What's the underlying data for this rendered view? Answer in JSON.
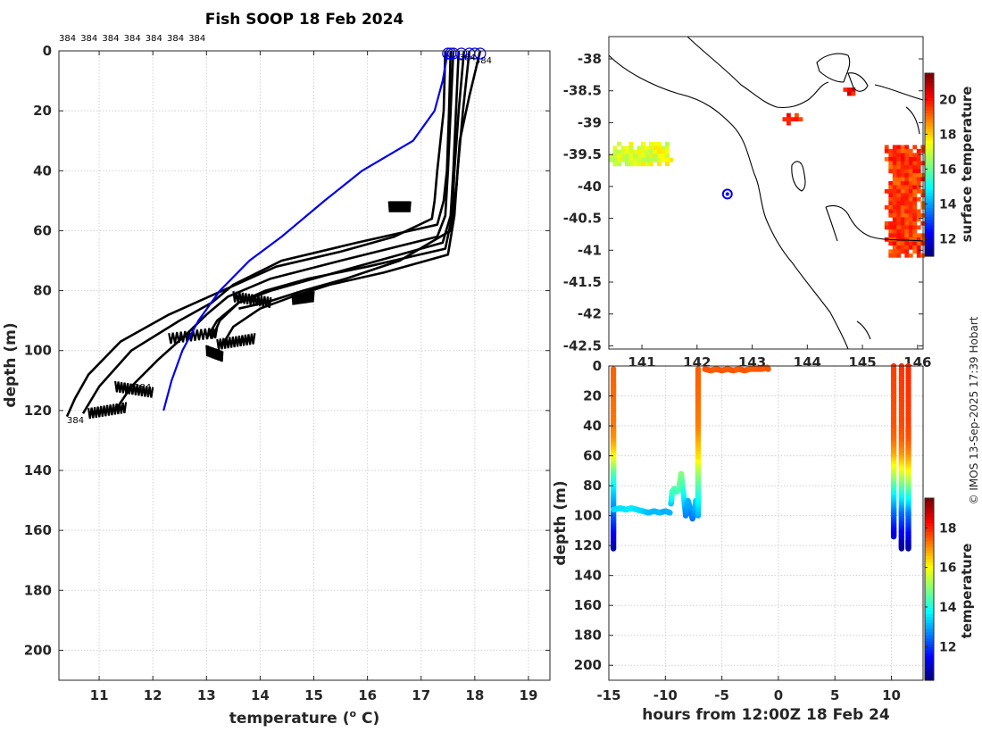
{
  "title": "Fish SOOP 18 Feb 2024",
  "credit": "© IMOS 13-Sep-2025 17:39 Hobart",
  "chart_data": [
    {
      "type": "line",
      "name": "profile-plot",
      "xlabel": "temperature (",
      "xlabel_sup": "o",
      "xlabel_end": " C)",
      "ylabel": "depth (m)",
      "xlim": [
        10.25,
        19.4
      ],
      "ylim": [
        210,
        0
      ],
      "xticks": [
        11,
        12,
        13,
        14,
        15,
        16,
        17,
        18,
        19
      ],
      "yticks": [
        0,
        20,
        40,
        60,
        80,
        100,
        120,
        140,
        160,
        180,
        200
      ],
      "top_labels": [
        "384",
        "384",
        "384",
        "384",
        "384",
        "384",
        "384"
      ],
      "annotations": [
        {
          "text": "384",
          "x": 11.65,
          "y": 112
        },
        {
          "text": "384",
          "x": 10.4,
          "y": 123
        },
        {
          "text": "384",
          "x": 17.7,
          "y": 2
        },
        {
          "text": "384",
          "x": 18.0,
          "y": 3
        }
      ],
      "climatology": {
        "name": "climatology",
        "color": "#0000ee",
        "x": [
          17.5,
          17.4,
          17.25,
          16.85,
          15.9,
          15.2,
          14.4,
          13.8,
          13.25,
          12.85,
          12.55,
          12.35,
          12.2
        ],
        "y": [
          0,
          10,
          20,
          30,
          40,
          50,
          62,
          70,
          80,
          90,
          100,
          110,
          120
        ]
      },
      "profiles": [
        {
          "x": [
            17.45,
            17.42,
            17.3,
            17.25,
            17.2,
            16.5,
            15.5,
            14.3,
            13.3,
            12.3,
            11.4,
            10.8,
            10.55,
            10.4
          ],
          "y": [
            0,
            20,
            40,
            50,
            56,
            62,
            67,
            72,
            80,
            88,
            97,
            108,
            116,
            122
          ]
        },
        {
          "x": [
            17.55,
            17.52,
            17.48,
            17.42,
            17.3,
            15.8,
            14.4,
            13.5,
            13.1,
            12.5,
            11.6,
            11.0,
            10.7
          ],
          "y": [
            0,
            20,
            40,
            50,
            58,
            64,
            70,
            78,
            84,
            90,
            100,
            112,
            121
          ]
        },
        {
          "x": [
            17.6,
            17.55,
            17.5,
            17.45,
            17.3,
            15.5,
            14.2,
            13.4,
            13.0,
            12.6,
            12.1,
            11.6,
            11.3
          ],
          "y": [
            0,
            20,
            40,
            55,
            62,
            70,
            76,
            82,
            88,
            95,
            103,
            112,
            120
          ]
        },
        {
          "x": [
            17.7,
            17.65,
            17.6,
            17.55,
            17.4,
            16.2,
            15.0,
            14.2,
            13.6,
            13.2,
            13.0
          ],
          "y": [
            0,
            20,
            40,
            55,
            64,
            70,
            76,
            80,
            84,
            90,
            96
          ]
        },
        {
          "x": [
            17.8,
            17.7,
            17.62,
            17.58,
            17.45,
            16.0,
            14.9,
            14.1,
            13.6,
            13.25,
            13.1
          ],
          "y": [
            0,
            20,
            40,
            55,
            66,
            72,
            76,
            80,
            84,
            90,
            96
          ]
        },
        {
          "x": [
            17.9,
            17.78,
            17.68,
            17.62,
            17.5,
            16.3,
            15.3,
            14.6,
            14.0,
            13.5,
            13.3
          ],
          "y": [
            0,
            20,
            40,
            55,
            68,
            74,
            78,
            82,
            86,
            92,
            98
          ]
        },
        {
          "x": [
            18.1,
            17.9,
            17.72,
            17.66,
            17.55,
            16.6,
            15.6,
            14.8,
            14.1,
            13.6
          ],
          "y": [
            0,
            15,
            30,
            45,
            60,
            70,
            76,
            80,
            84,
            86
          ]
        }
      ],
      "profile_start_markers": [
        17.5,
        17.55,
        17.6,
        17.75,
        17.9,
        18.0,
        18.1
      ]
    },
    {
      "type": "heatmap",
      "name": "surface-map",
      "colorbar_label": "surface temperature",
      "clim": [
        11,
        21.5
      ],
      "colorbar_ticks": [
        12,
        14,
        16,
        18,
        20
      ],
      "xlim": [
        140.4,
        146.1
      ],
      "ylim": [
        -42.55,
        -37.65
      ],
      "xticks": [
        141,
        142,
        143,
        144,
        145,
        146
      ],
      "yticks": [
        -38,
        -38.5,
        -39,
        -39.5,
        -40,
        -40.5,
        -41,
        -41.5,
        -42,
        -42.5
      ],
      "ytick_labels": [
        "-38",
        "-38.5",
        "-39",
        "-39.5",
        "-40",
        "-40.5",
        "-41",
        "-41.5",
        "-42",
        "-42.5"
      ],
      "ship_position": {
        "lon": 142.55,
        "lat": -40.12
      },
      "patches": [
        {
          "name": "west-warm-patch",
          "temperature": 17.3,
          "lon": [
            140.4,
            141.5
          ],
          "lat": [
            -39.65,
            -39.3
          ]
        },
        {
          "name": "east-warm-patch",
          "temperature": 19.6,
          "lon": [
            145.4,
            146.1
          ],
          "lat": [
            -41.1,
            -39.35
          ]
        },
        {
          "name": "north-spot-1",
          "temperature": 19.8,
          "lon": [
            143.55,
            143.85
          ],
          "lat": [
            -38.98,
            -38.85
          ]
        },
        {
          "name": "north-spot-2",
          "temperature": 20.2,
          "lon": [
            144.65,
            144.85
          ],
          "lat": [
            -38.55,
            -38.45
          ]
        }
      ]
    },
    {
      "type": "scatter",
      "name": "time-depth-plot",
      "xlabel": "hours from 12:00Z 18 Feb 24",
      "ylabel": "depth (m)",
      "colorbar_label": "temperature",
      "clim": [
        10.3,
        19.5
      ],
      "colorbar_ticks": [
        12,
        14,
        16,
        18
      ],
      "xlim": [
        -15,
        12.8
      ],
      "ylim": [
        210,
        0
      ],
      "xticks": [
        -15,
        -10,
        -5,
        0,
        5,
        10
      ],
      "yticks": [
        0,
        20,
        40,
        60,
        80,
        100,
        120,
        140,
        160,
        180,
        200
      ],
      "tracks": [
        {
          "x": [
            -14.6,
            -14.6,
            -14.6,
            -14.6,
            -14.6,
            -14.6,
            -14.6,
            -14.6,
            -14.6,
            -14.6,
            -14.6,
            -14.6,
            -14.6
          ],
          "y": [
            2,
            20,
            40,
            50,
            58,
            66,
            72,
            80,
            88,
            96,
            104,
            112,
            122
          ],
          "t": [
            17.5,
            17.4,
            17.3,
            17.0,
            16.4,
            15.5,
            14.6,
            13.8,
            13.2,
            12.7,
            12.1,
            11.5,
            10.8
          ]
        },
        {
          "x": [
            -14.6,
            -14.0,
            -13.5,
            -13.0,
            -12.5,
            -12.0,
            -11.5,
            -11.0,
            -10.5,
            -10.0,
            -9.6
          ],
          "y": [
            96,
            95,
            96,
            95,
            96,
            97,
            98,
            97,
            98,
            97,
            98
          ],
          "t": [
            13.4,
            13.5,
            13.5,
            13.6,
            13.5,
            13.4,
            13.2,
            13.1,
            13.2,
            13.0,
            13.1
          ]
        },
        {
          "x": [
            -9.5,
            -9.4,
            -9.2,
            -9.0,
            -8.8,
            -8.6,
            -8.4,
            -8.2,
            -8.0,
            -7.8,
            -7.6,
            -7.4,
            -7.3
          ],
          "y": [
            92,
            84,
            82,
            84,
            82,
            72,
            85,
            100,
            90,
            96,
            102,
            96,
            90
          ],
          "t": [
            13.2,
            14.3,
            14.5,
            14.2,
            14.5,
            15.0,
            14.0,
            12.6,
            13.1,
            12.9,
            12.4,
            12.9,
            13.3
          ]
        },
        {
          "x": [
            -7.1,
            -7.1,
            -7.1,
            -7.1,
            -7.1,
            -7.1,
            -7.1,
            -7.1
          ],
          "y": [
            100,
            90,
            80,
            70,
            60,
            40,
            20,
            2
          ],
          "t": [
            13.0,
            13.7,
            14.4,
            15.2,
            16.3,
            17.2,
            17.4,
            17.5
          ]
        },
        {
          "x": [
            -6.5,
            -6.0,
            -5.5,
            -5.0,
            -4.5,
            -4.0,
            -3.5,
            -3.0,
            -2.5,
            -1.5,
            -1.0,
            -0.9
          ],
          "y": [
            2,
            3,
            2,
            3,
            2,
            3,
            2,
            3,
            2,
            2,
            1,
            2
          ],
          "t": [
            17.6,
            17.6,
            17.5,
            17.6,
            17.5,
            17.6,
            17.5,
            17.6,
            17.5,
            17.6,
            17.5,
            17.6
          ]
        },
        {
          "x": [
            10.2,
            10.2,
            10.2,
            10.2,
            10.2,
            10.2,
            10.2,
            10.2,
            10.2,
            10.2,
            10.2,
            10.2
          ],
          "y": [
            0,
            20,
            40,
            50,
            60,
            70,
            80,
            88,
            95,
            100,
            108,
            114
          ],
          "t": [
            17.8,
            17.7,
            17.6,
            17.4,
            16.8,
            15.8,
            14.6,
            13.6,
            12.9,
            12.4,
            11.7,
            11.2
          ]
        },
        {
          "x": [
            10.9,
            10.9,
            10.9,
            10.9,
            10.9,
            10.9,
            10.9,
            10.9,
            10.9,
            10.9,
            10.9,
            10.9,
            10.9
          ],
          "y": [
            0,
            20,
            40,
            50,
            60,
            70,
            80,
            88,
            95,
            100,
            108,
            116,
            122
          ],
          "t": [
            17.9,
            17.8,
            17.7,
            17.5,
            17.0,
            16.0,
            14.8,
            13.8,
            13.0,
            12.4,
            11.8,
            11.1,
            10.6
          ]
        },
        {
          "x": [
            11.5,
            11.5,
            11.5,
            11.5,
            11.5,
            11.5,
            11.5,
            11.5,
            11.5,
            11.5,
            11.5,
            11.5,
            11.5
          ],
          "y": [
            0,
            20,
            40,
            50,
            60,
            70,
            80,
            88,
            95,
            100,
            108,
            116,
            122
          ],
          "t": [
            18.0,
            17.9,
            17.8,
            17.6,
            17.1,
            16.2,
            15.0,
            14.0,
            13.2,
            12.5,
            11.9,
            11.2,
            10.7
          ]
        }
      ]
    }
  ]
}
